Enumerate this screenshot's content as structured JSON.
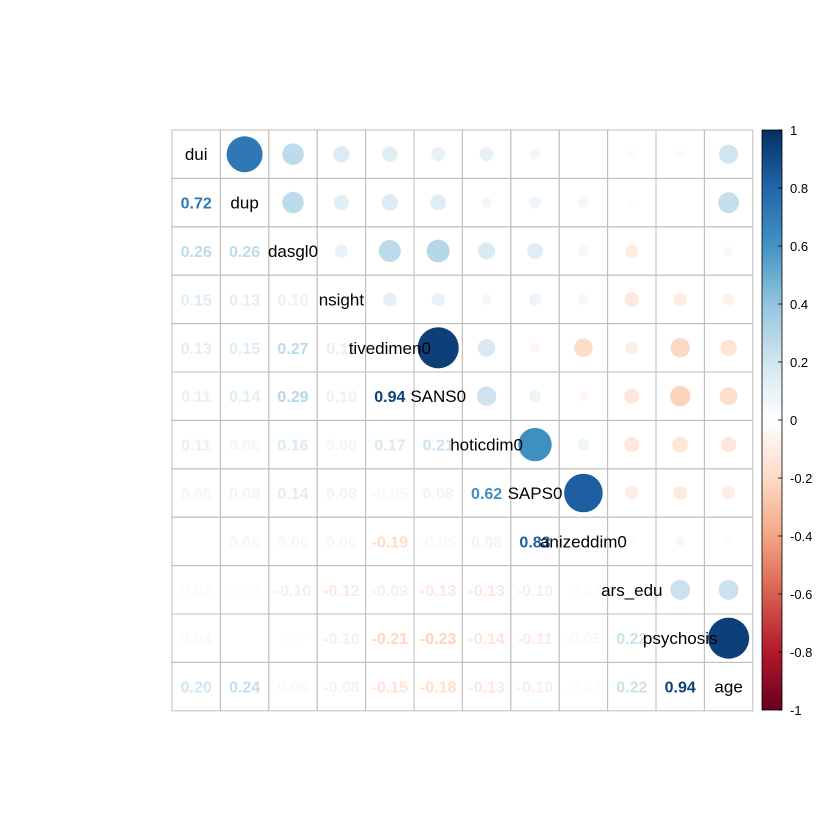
{
  "chart_data": {
    "type": "heatmap",
    "variables": [
      "dui",
      "dup",
      "dasgl0",
      "nsight",
      "tivedimen0",
      "SANS0",
      "hoticdim0",
      "SAPS0",
      "anizeddim0",
      "ars_edu",
      "psychosis",
      "age"
    ],
    "lower_labels": [
      [],
      [
        "0.72"
      ],
      [
        "0.26",
        "0.26"
      ],
      [
        "0.15",
        "0.13",
        "0.10"
      ],
      [
        "0.13",
        "0.15",
        "0.27",
        "0.11"
      ],
      [
        "0.11",
        "0.14",
        "0.29",
        "0.10",
        "0.94"
      ],
      [
        "0.11",
        "0.06",
        "0.16",
        "0.06",
        "0.17",
        "0.21"
      ],
      [
        "0.06",
        "0.08",
        "0.14",
        "0.08",
        "-0.05",
        "0.08",
        "0.62"
      ],
      [
        "0.00",
        "0.06",
        "0.06",
        "0.06",
        "-0.19",
        "-0.05",
        "0.08",
        "0.83"
      ],
      [
        "0.03",
        "0.02",
        "-0.10",
        "-0.12",
        "-0.09",
        "-0.13",
        "-0.13",
        "-0.10",
        "-0.03"
      ],
      [
        "0.04",
        "0.00",
        "0.01",
        "-0.10",
        "-0.21",
        "-0.23",
        "-0.14",
        "-0.11",
        "-0.05",
        "0.22"
      ],
      [
        "0.20",
        "0.24",
        "0.05",
        "-0.08",
        "-0.15",
        "-0.18",
        "-0.13",
        "-0.10",
        "-0.03",
        "0.22",
        "0.94"
      ]
    ],
    "upper_values": [
      [
        null,
        0.72,
        0.26,
        0.15,
        0.13,
        0.11,
        0.11,
        0.06,
        0.0,
        0.03,
        0.04,
        0.2
      ],
      [
        null,
        null,
        0.26,
        0.13,
        0.15,
        0.14,
        0.06,
        0.08,
        0.06,
        0.02,
        0.0,
        0.24
      ],
      [
        null,
        null,
        null,
        0.1,
        0.27,
        0.29,
        0.16,
        0.14,
        0.06,
        -0.1,
        0.01,
        0.05
      ],
      [
        null,
        null,
        null,
        null,
        0.11,
        0.1,
        0.06,
        0.08,
        0.06,
        -0.12,
        -0.1,
        -0.08
      ],
      [
        null,
        null,
        null,
        null,
        null,
        0.94,
        0.17,
        -0.05,
        -0.19,
        -0.09,
        -0.21,
        -0.15
      ],
      [
        null,
        null,
        null,
        null,
        null,
        null,
        0.21,
        0.08,
        -0.05,
        -0.13,
        -0.23,
        -0.18
      ],
      [
        null,
        null,
        null,
        null,
        null,
        null,
        null,
        0.62,
        0.08,
        -0.13,
        -0.14,
        -0.13
      ],
      [
        null,
        null,
        null,
        null,
        null,
        null,
        null,
        null,
        0.83,
        -0.1,
        -0.11,
        -0.1
      ],
      [
        null,
        null,
        null,
        null,
        null,
        null,
        null,
        null,
        null,
        -0.03,
        -0.05,
        -0.03
      ],
      [
        null,
        null,
        null,
        null,
        null,
        null,
        null,
        null,
        null,
        null,
        0.22,
        0.22
      ],
      [
        null,
        null,
        null,
        null,
        null,
        null,
        null,
        null,
        null,
        null,
        null,
        0.94
      ],
      [
        null,
        null,
        null,
        null,
        null,
        null,
        null,
        null,
        null,
        null,
        null,
        null
      ]
    ],
    "colorbar": {
      "range": [
        -1,
        1
      ],
      "tick_values": [
        1,
        0.8,
        0.6,
        0.4,
        0.2,
        0,
        -0.2,
        -0.4,
        -0.6,
        -0.8,
        -1
      ],
      "tick_labels": [
        "1",
        "0.8",
        "0.6",
        "0.4",
        "0.2",
        "0",
        "-0.2",
        "-0.4",
        "-0.6",
        "-0.8",
        "-1"
      ]
    },
    "colors": {
      "neg1": "#67001F",
      "neg08": "#B2182B",
      "neg06": "#D6604D",
      "neg04": "#F4A582",
      "neg02": "#FDDBC7",
      "zero": "#FFFFFF",
      "pos02": "#D1E5F0",
      "pos04": "#92C5DE",
      "pos06": "#4393C3",
      "pos08": "#2166AC",
      "pos1": "#053061",
      "grid": "#BEBEBE"
    },
    "method_upper": "circle",
    "method_lower": "number",
    "grid": true,
    "legend_placement": "right"
  }
}
